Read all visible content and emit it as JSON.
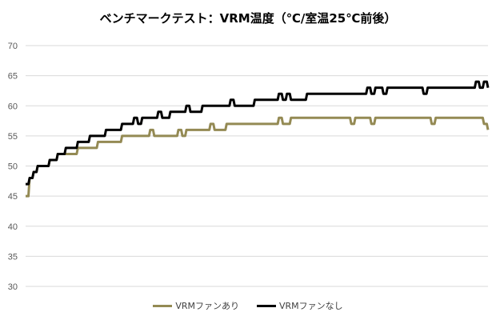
{
  "chart_data": {
    "type": "line",
    "title": "ベンチマークテスト：VRM温度（℃/室温25℃前後）",
    "xlabel": "",
    "ylabel": "",
    "ylim": [
      30,
      70
    ],
    "yticks": [
      "30",
      "35",
      "40",
      "45",
      "50",
      "55",
      "60",
      "65",
      "70"
    ],
    "grid": true,
    "legend_position": "bottom",
    "series": [
      {
        "name": "VRMファンあり",
        "color": "#948a54",
        "values": [
          45,
          48,
          49,
          50,
          50,
          50,
          51,
          51,
          52,
          52,
          52,
          52,
          52,
          53,
          53,
          53,
          53,
          53,
          54,
          54,
          54,
          54,
          54,
          54,
          55,
          55,
          55,
          55,
          55,
          55,
          55,
          56,
          55,
          55,
          55,
          55,
          55,
          55,
          56,
          55,
          56,
          56,
          56,
          56,
          56,
          56,
          57,
          56,
          56,
          56,
          57,
          57,
          57,
          57,
          57,
          57,
          57,
          57,
          57,
          57,
          57,
          57,
          57,
          58,
          57,
          57,
          58,
          58,
          58,
          58,
          58,
          58,
          58,
          58,
          58,
          58,
          58,
          58,
          58,
          58,
          58,
          57,
          58,
          58,
          58,
          58,
          57,
          58,
          58,
          58,
          58,
          58,
          58,
          58,
          58,
          58,
          58,
          58,
          58,
          58,
          58,
          57,
          58,
          58,
          58,
          58,
          58,
          58,
          58,
          58,
          58,
          58,
          58,
          58,
          57,
          56
        ]
      },
      {
        "name": "VRMファンなし",
        "color": "#000000",
        "values": [
          47,
          48,
          49,
          50,
          50,
          50,
          51,
          51,
          52,
          52,
          53,
          53,
          53,
          54,
          54,
          54,
          55,
          55,
          55,
          55,
          56,
          56,
          56,
          56,
          57,
          57,
          57,
          58,
          57,
          58,
          58,
          58,
          58,
          59,
          58,
          58,
          59,
          59,
          59,
          59,
          60,
          59,
          59,
          59,
          60,
          60,
          60,
          60,
          60,
          60,
          60,
          61,
          60,
          60,
          60,
          60,
          60,
          61,
          61,
          61,
          61,
          61,
          61,
          62,
          61,
          62,
          61,
          61,
          61,
          61,
          62,
          62,
          62,
          62,
          62,
          62,
          62,
          62,
          62,
          62,
          62,
          62,
          62,
          62,
          62,
          63,
          62,
          63,
          63,
          62,
          63,
          63,
          63,
          63,
          63,
          63,
          63,
          63,
          63,
          62,
          63,
          63,
          63,
          63,
          63,
          63,
          63,
          63,
          63,
          63,
          63,
          63,
          64,
          63,
          64,
          63
        ]
      }
    ]
  }
}
